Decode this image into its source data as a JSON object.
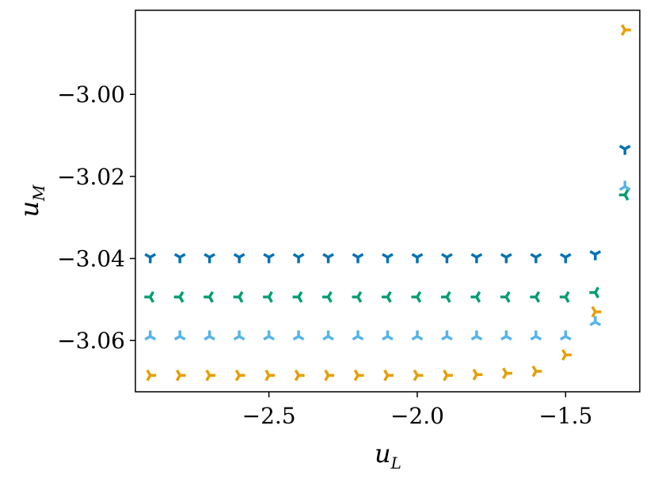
{
  "chart_data": {
    "type": "scatter",
    "xlabel": "u",
    "xlabel_sub": "L",
    "ylabel": "u",
    "ylabel_sub": "M",
    "xlim": [
      -2.95,
      -1.25
    ],
    "ylim": [
      -3.0725,
      -2.9795
    ],
    "x_ticks": [
      -2.5,
      -2.0,
      -1.5
    ],
    "x_tick_labels": [
      "−2.5",
      "−2.0",
      "−1.5"
    ],
    "y_ticks": [
      -3.0,
      -3.02,
      -3.04,
      -3.06
    ],
    "y_tick_labels": [
      "−3.00",
      "−3.02",
      "−3.04",
      "−3.06"
    ],
    "grid": false,
    "legend": "none",
    "series": [
      {
        "marker": "tri_down",
        "color": "#0072B2",
        "points": [
          [
            -2.9,
            -3.0397
          ],
          [
            -2.8,
            -3.0397
          ],
          [
            -2.7,
            -3.0397
          ],
          [
            -2.6,
            -3.0397
          ],
          [
            -2.5,
            -3.0397
          ],
          [
            -2.4,
            -3.0397
          ],
          [
            -2.3,
            -3.0397
          ],
          [
            -2.2,
            -3.0397
          ],
          [
            -2.1,
            -3.0397
          ],
          [
            -2.0,
            -3.0397
          ],
          [
            -1.9,
            -3.0397
          ],
          [
            -1.8,
            -3.0397
          ],
          [
            -1.7,
            -3.0397
          ],
          [
            -1.6,
            -3.0397
          ],
          [
            -1.5,
            -3.0397
          ],
          [
            -1.4,
            -3.039
          ],
          [
            -1.3,
            -3.0133
          ]
        ]
      },
      {
        "marker": "tri_left",
        "color": "#009E73",
        "points": [
          [
            -2.9,
            -3.0494
          ],
          [
            -2.8,
            -3.0494
          ],
          [
            -2.7,
            -3.0494
          ],
          [
            -2.6,
            -3.0494
          ],
          [
            -2.5,
            -3.0494
          ],
          [
            -2.4,
            -3.0494
          ],
          [
            -2.3,
            -3.0494
          ],
          [
            -2.2,
            -3.0494
          ],
          [
            -2.1,
            -3.0494
          ],
          [
            -2.0,
            -3.0494
          ],
          [
            -1.9,
            -3.0494
          ],
          [
            -1.8,
            -3.0494
          ],
          [
            -1.7,
            -3.0494
          ],
          [
            -1.6,
            -3.0494
          ],
          [
            -1.5,
            -3.0494
          ],
          [
            -1.4,
            -3.0483
          ],
          [
            -1.3,
            -3.0245
          ]
        ]
      },
      {
        "marker": "tri_up",
        "color": "#56B4E9",
        "points": [
          [
            -2.9,
            -3.059
          ],
          [
            -2.8,
            -3.059
          ],
          [
            -2.7,
            -3.059
          ],
          [
            -2.6,
            -3.059
          ],
          [
            -2.5,
            -3.059
          ],
          [
            -2.4,
            -3.059
          ],
          [
            -2.3,
            -3.059
          ],
          [
            -2.2,
            -3.059
          ],
          [
            -2.1,
            -3.059
          ],
          [
            -2.0,
            -3.059
          ],
          [
            -1.9,
            -3.059
          ],
          [
            -1.8,
            -3.059
          ],
          [
            -1.7,
            -3.059
          ],
          [
            -1.6,
            -3.059
          ],
          [
            -1.5,
            -3.059
          ],
          [
            -1.4,
            -3.0555
          ],
          [
            -1.3,
            -3.0225
          ]
        ]
      },
      {
        "marker": "tri_right",
        "color": "#E69F00",
        "points": [
          [
            -2.9,
            -3.0685
          ],
          [
            -2.8,
            -3.0685
          ],
          [
            -2.7,
            -3.0685
          ],
          [
            -2.6,
            -3.0685
          ],
          [
            -2.5,
            -3.0685
          ],
          [
            -2.4,
            -3.0685
          ],
          [
            -2.3,
            -3.0685
          ],
          [
            -2.2,
            -3.0685
          ],
          [
            -2.1,
            -3.0685
          ],
          [
            -2.0,
            -3.0685
          ],
          [
            -1.9,
            -3.0685
          ],
          [
            -1.8,
            -3.0683
          ],
          [
            -1.7,
            -3.068
          ],
          [
            -1.6,
            -3.0675
          ],
          [
            -1.5,
            -3.0635
          ],
          [
            -1.4,
            -3.053
          ],
          [
            -1.3,
            -2.9843
          ]
        ]
      }
    ]
  }
}
